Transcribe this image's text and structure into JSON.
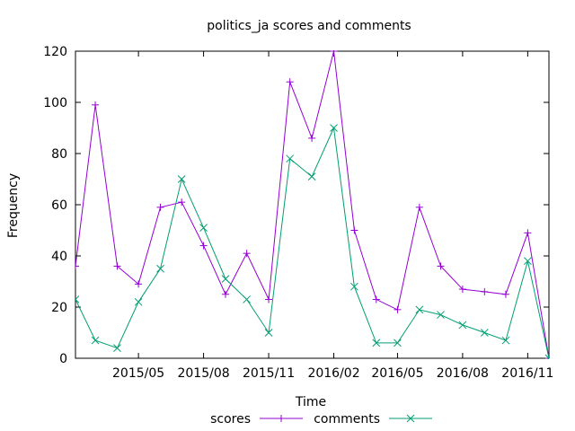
{
  "chart_data": {
    "type": "line",
    "title": "politics_ja scores and comments",
    "xlabel": "Time",
    "ylabel": "Frequency",
    "ylim": [
      0,
      120
    ],
    "yticks": [
      0,
      20,
      40,
      60,
      80,
      100,
      120
    ],
    "xlim": [
      "2015-02-01",
      "2016-12-01"
    ],
    "xtick_labels": [
      "2015/05",
      "2015/08",
      "2015/11",
      "2016/02",
      "2016/05",
      "2016/08",
      "2016/11"
    ],
    "xtick_dates": [
      "2015-05-01",
      "2015-08-01",
      "2015-11-01",
      "2016-02-01",
      "2016-05-01",
      "2016-08-01",
      "2016-11-01"
    ],
    "x": [
      "2015-02-01",
      "2015-03-01",
      "2015-04-01",
      "2015-05-01",
      "2015-06-01",
      "2015-07-01",
      "2015-08-01",
      "2015-09-01",
      "2015-10-01",
      "2015-11-01",
      "2015-12-01",
      "2016-01-01",
      "2016-02-01",
      "2016-03-01",
      "2016-04-01",
      "2016-05-01",
      "2016-06-01",
      "2016-07-01",
      "2016-08-01",
      "2016-09-01",
      "2016-10-01",
      "2016-11-01",
      "2016-12-01"
    ],
    "series": [
      {
        "name": "scores",
        "color": "#9400d3",
        "marker": "plus",
        "values": [
          36,
          99,
          36,
          29,
          59,
          61,
          44,
          25,
          41,
          23,
          108,
          86,
          120,
          50,
          23,
          19,
          59,
          36,
          27,
          26,
          25,
          49,
          0
        ]
      },
      {
        "name": "comments",
        "color": "#009e73",
        "marker": "cross",
        "values": [
          23,
          7,
          4,
          22,
          35,
          70,
          51,
          31,
          23,
          10,
          78,
          71,
          90,
          28,
          6,
          6,
          19,
          17,
          13,
          10,
          7,
          38,
          0
        ]
      }
    ],
    "grid": false,
    "legend_position": "bottom-center"
  }
}
